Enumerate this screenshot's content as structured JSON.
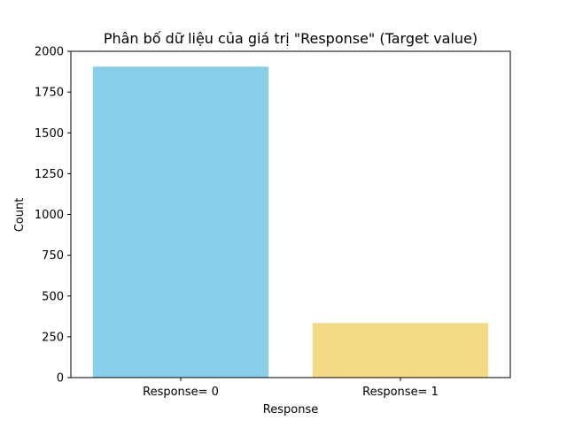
{
  "chart_data": {
    "type": "bar",
    "title": "Phân bố dữ liệu của giá trị \"Response\" (Target value)",
    "xlabel": "Response",
    "ylabel": "Count",
    "categories": [
      "Response= 0",
      "Response= 1"
    ],
    "values": [
      1906,
      334
    ],
    "colors": [
      "#87ceeb",
      "#f5da84"
    ],
    "ylim": [
      0,
      2000
    ],
    "yticks": [
      0,
      250,
      500,
      750,
      1000,
      1250,
      1500,
      1750,
      2000
    ],
    "grid": false,
    "legend": "none"
  }
}
